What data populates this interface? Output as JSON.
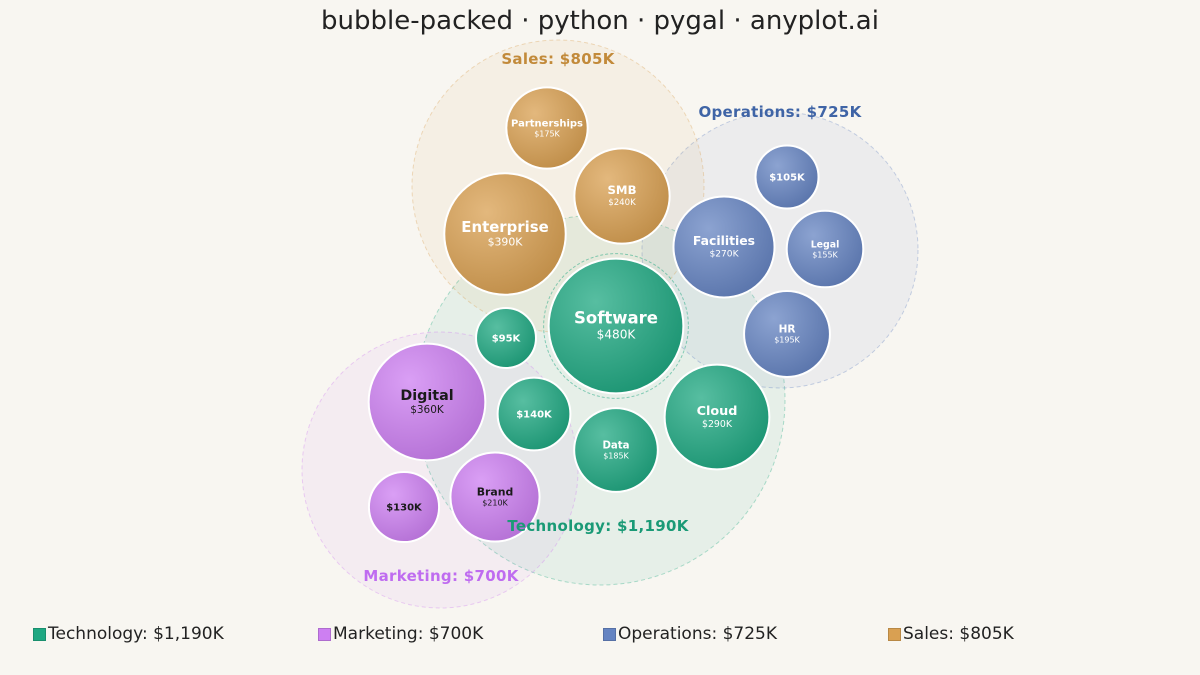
{
  "title": "bubble-packed · python · pygal · anyplot.ai",
  "chart_data": {
    "type": "bubble-packed",
    "groups": [
      {
        "name": "Technology",
        "total_label": "Technology: $1,190K",
        "color": "#1fa882",
        "text_color": "#ffffff",
        "label_color": "#1a9a76",
        "items": [
          {
            "label": "Software",
            "value": 480,
            "value_label": "$480K"
          },
          {
            "label": "Cloud",
            "value": 290,
            "value_label": "$290K"
          },
          {
            "label": "Data",
            "value": 185,
            "value_label": "$185K"
          },
          {
            "label": "",
            "value": 140,
            "value_label": "$140K"
          },
          {
            "label": "",
            "value": 95,
            "value_label": "$95K"
          }
        ]
      },
      {
        "name": "Marketing",
        "total_label": "Marketing: $700K",
        "color": "#cd7ff2",
        "text_color": "#1a1a1a",
        "label_color": "#bf6cf0",
        "items": [
          {
            "label": "Digital",
            "value": 360,
            "value_label": "$360K"
          },
          {
            "label": "Brand",
            "value": 210,
            "value_label": "$210K"
          },
          {
            "label": "",
            "value": 130,
            "value_label": "$130K"
          }
        ]
      },
      {
        "name": "Operations",
        "total_label": "Operations: $725K",
        "color": "#6584c2",
        "text_color": "#ffffff",
        "label_color": "#3f64a6",
        "items": [
          {
            "label": "Facilities",
            "value": 270,
            "value_label": "$270K"
          },
          {
            "label": "HR",
            "value": 195,
            "value_label": "$195K"
          },
          {
            "label": "Legal",
            "value": 155,
            "value_label": "$155K"
          },
          {
            "label": "",
            "value": 105,
            "value_label": "$105K"
          }
        ]
      },
      {
        "name": "Sales",
        "total_label": "Sales: $805K",
        "color": "#d9a052",
        "text_color": "#ffffff",
        "label_color": "#c28a3a",
        "items": [
          {
            "label": "Enterprise",
            "value": 390,
            "value_label": "$390K"
          },
          {
            "label": "SMB",
            "value": 240,
            "value_label": "$240K"
          },
          {
            "label": "Partnerships",
            "value": 175,
            "value_label": "$175K"
          }
        ]
      }
    ],
    "legend": {
      "position": "bottom",
      "entries": [
        "Technology: $1,190K",
        "Marketing: $700K",
        "Operations: $725K",
        "Sales: $805K"
      ]
    }
  }
}
